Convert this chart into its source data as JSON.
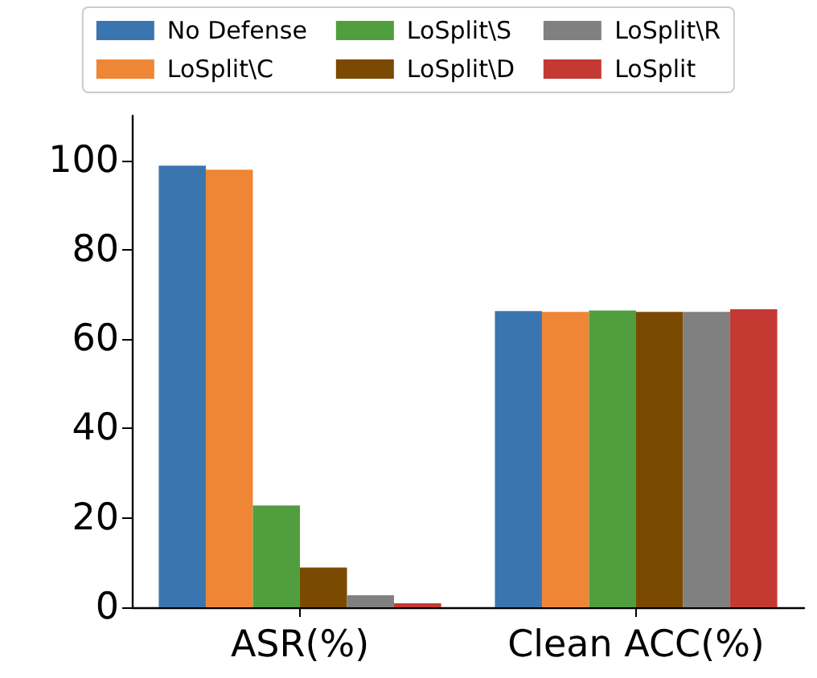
{
  "chart_data": {
    "type": "bar",
    "categories": [
      "ASR(%)",
      "Clean ACC(%)"
    ],
    "series": [
      {
        "name": "No Defense",
        "color": "#3b75af",
        "values": [
          98.8,
          66.3
        ]
      },
      {
        "name": "LoSplit\\C",
        "color": "#ef8636",
        "values": [
          97.9,
          66.1
        ]
      },
      {
        "name": "LoSplit\\S",
        "color": "#519e3e",
        "values": [
          22.8,
          66.4
        ]
      },
      {
        "name": "LoSplit\\D",
        "color": "#7a4a03",
        "values": [
          8.9,
          66.1
        ]
      },
      {
        "name": "LoSplit\\R",
        "color": "#808080",
        "values": [
          2.7,
          66.1
        ]
      },
      {
        "name": "LoSplit",
        "color": "#c43932",
        "values": [
          0.9,
          66.7
        ]
      }
    ],
    "ylim": [
      0,
      110
    ],
    "yticks": [
      0,
      20,
      40,
      60,
      80,
      100
    ],
    "grid": false,
    "legend": "top"
  }
}
